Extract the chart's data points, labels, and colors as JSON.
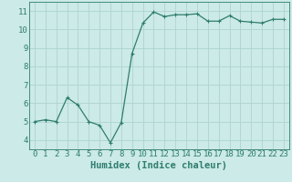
{
  "x": [
    0,
    1,
    2,
    3,
    4,
    5,
    6,
    7,
    8,
    9,
    10,
    11,
    12,
    13,
    14,
    15,
    16,
    17,
    18,
    19,
    20,
    21,
    22,
    23
  ],
  "y": [
    5.0,
    5.1,
    5.0,
    6.3,
    5.9,
    5.0,
    4.8,
    3.85,
    4.95,
    8.7,
    10.35,
    10.95,
    10.7,
    10.8,
    10.8,
    10.85,
    10.45,
    10.45,
    10.75,
    10.45,
    10.4,
    10.35,
    10.55,
    10.55
  ],
  "line_color": "#2e7d6e",
  "marker": "+",
  "marker_size": 3,
  "marker_linewidth": 0.8,
  "line_width": 0.9,
  "bg_color": "#cceae7",
  "grid_color": "#aed4d0",
  "axis_color": "#2e7d6e",
  "xlabel": "Humidex (Indice chaleur)",
  "ylim": [
    3.5,
    11.5
  ],
  "xlim": [
    -0.5,
    23.5
  ],
  "yticks": [
    4,
    5,
    6,
    7,
    8,
    9,
    10,
    11
  ],
  "xticks": [
    0,
    1,
    2,
    3,
    4,
    5,
    6,
    7,
    8,
    9,
    10,
    11,
    12,
    13,
    14,
    15,
    16,
    17,
    18,
    19,
    20,
    21,
    22,
    23
  ],
  "xlabel_fontsize": 7.5,
  "tick_fontsize": 6.5
}
